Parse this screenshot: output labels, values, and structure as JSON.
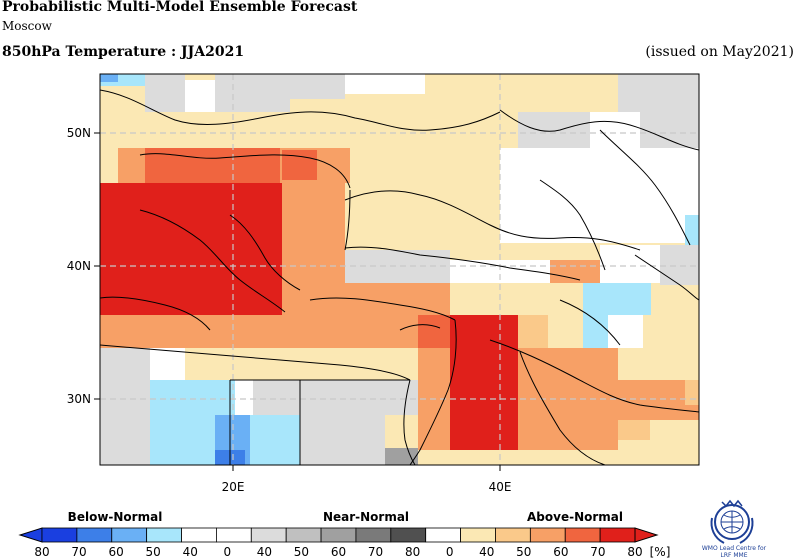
{
  "header": {
    "title": "Probabilistic Multi-Model Ensemble Forecast",
    "subtitle": "Moscow",
    "variable": "850hPa Temperature : JJA2021",
    "issued": "(issued on May2021)"
  },
  "map": {
    "lon_labels": [
      "20E",
      "40E"
    ],
    "lat_labels": [
      "50N",
      "40N",
      "30N"
    ]
  },
  "legend": {
    "below_label": "Below-Normal",
    "near_label": "Near-Normal",
    "above_label": "Above-Normal",
    "ticks": [
      "80",
      "70",
      "60",
      "50",
      "40",
      "0",
      "40",
      "50",
      "60",
      "70",
      "80",
      "0",
      "40",
      "50",
      "60",
      "70",
      "80"
    ],
    "unit": "[%]",
    "colors": {
      "below": [
        "#1a3fe0",
        "#3d7fe8",
        "#6ab0f5",
        "#a8e6fb",
        "#ffffff"
      ],
      "near": [
        "#ffffff",
        "#dcdcdc",
        "#c0c0c0",
        "#a0a0a0",
        "#7a7a7a",
        "#505050"
      ],
      "above": [
        "#ffffff",
        "#fbe8b4",
        "#fac98a",
        "#f7a066",
        "#f0653f",
        "#e0201b"
      ]
    }
  },
  "logo": {
    "caption_line1": "WMO Lead Centre for",
    "caption_line2": "LRF MME"
  }
}
